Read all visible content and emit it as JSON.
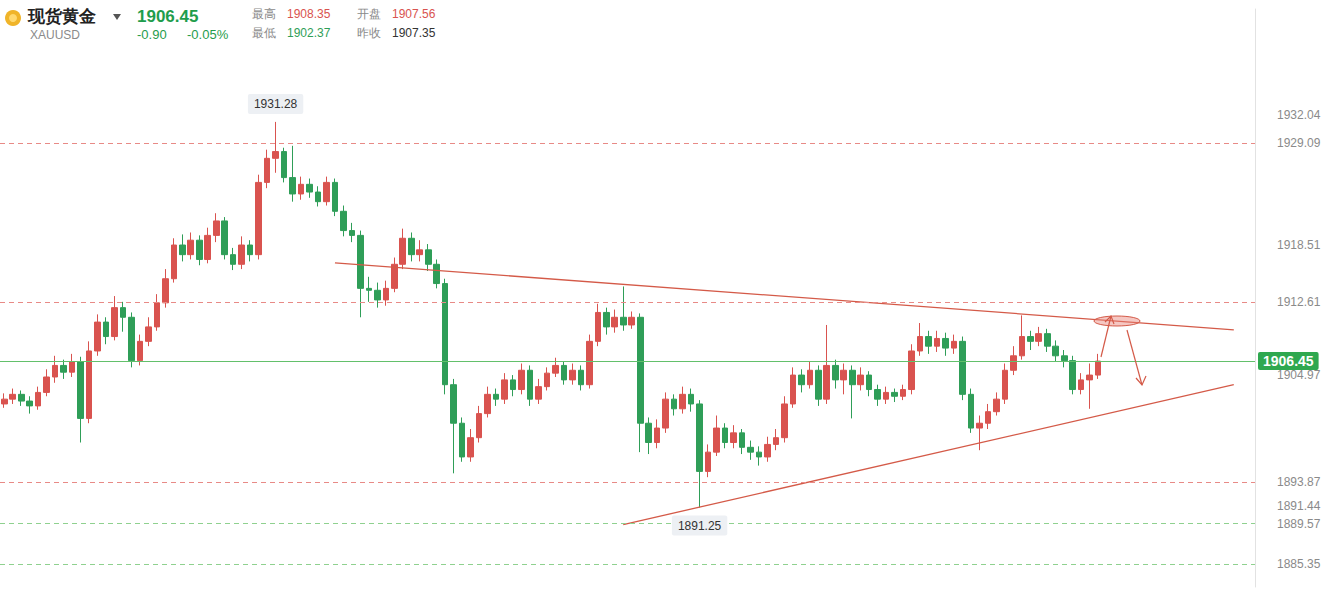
{
  "chart_data": {
    "type": "candlestick",
    "header": {
      "name": "现货黄金",
      "symbol": "XAUUSD",
      "price": "1906.45",
      "change": "-0.90",
      "change_pct": "-0.05%",
      "stats": [
        {
          "label": "最高",
          "value": "1908.35"
        },
        {
          "label": "开盘",
          "value": "1907.56"
        },
        {
          "label": "最低",
          "value": "1902.37"
        },
        {
          "label": "昨收",
          "value": "1907.35"
        }
      ]
    },
    "categories": [
      null,
      null,
      null,
      null,
      null,
      null,
      null,
      null,
      null,
      null,
      null,
      null,
      null,
      null,
      null,
      null,
      null,
      null,
      null,
      null,
      null,
      null,
      null,
      null,
      null,
      null,
      null,
      null,
      null,
      null,
      null,
      null,
      null,
      null,
      null,
      null,
      null,
      null,
      null,
      null,
      null,
      null,
      null,
      null,
      null,
      null,
      null,
      null,
      null,
      null,
      null,
      null,
      null,
      null,
      null,
      null,
      null,
      null,
      null,
      null,
      null,
      null,
      null,
      null,
      null,
      null,
      null,
      null,
      null,
      null,
      null,
      null,
      null,
      null,
      null,
      null,
      null,
      null,
      null,
      null,
      null,
      null,
      null,
      null,
      null,
      null,
      null,
      null,
      null,
      null,
      null,
      null,
      null,
      null,
      null,
      null,
      null,
      null,
      null,
      null,
      null,
      null,
      null,
      null,
      null,
      null,
      null,
      null,
      null,
      null,
      null,
      null,
      null,
      null,
      null,
      null,
      null,
      null,
      null,
      null,
      null,
      null,
      null,
      null,
      null,
      null,
      null,
      null,
      null,
      null,
      null,
      null,
      null,
      null,
      null,
      null,
      null,
      null,
      null,
      null,
      null,
      null,
      null,
      null,
      null,
      null,
      null,
      null
    ],
    "open_close_low_high": [
      [
        1902.0,
        1902.5,
        1901.6,
        1903.1
      ],
      [
        1902.5,
        1903.0,
        1902.0,
        1903.6
      ],
      [
        1903.0,
        1902.3,
        1901.8,
        1903.4
      ],
      [
        1902.3,
        1901.8,
        1901.0,
        1902.8
      ],
      [
        1901.8,
        1903.2,
        1901.4,
        1903.8
      ],
      [
        1903.2,
        1904.8,
        1902.8,
        1905.6
      ],
      [
        1904.8,
        1906.0,
        1904.2,
        1907.0
      ],
      [
        1906.0,
        1905.3,
        1904.6,
        1906.6
      ],
      [
        1905.3,
        1906.4,
        1904.8,
        1907.2
      ],
      [
        1906.4,
        1900.5,
        1898.0,
        1906.9
      ],
      [
        1900.5,
        1907.5,
        1900.0,
        1908.5
      ],
      [
        1907.5,
        1910.5,
        1907.0,
        1911.3
      ],
      [
        1910.5,
        1909.0,
        1908.2,
        1911.0
      ],
      [
        1909.0,
        1912.0,
        1908.6,
        1913.2
      ],
      [
        1912.0,
        1911.0,
        1909.5,
        1912.6
      ],
      [
        1911.0,
        1906.5,
        1905.8,
        1911.5
      ],
      [
        1906.5,
        1908.5,
        1906.0,
        1909.2
      ],
      [
        1908.5,
        1910.0,
        1908.0,
        1911.0
      ],
      [
        1910.0,
        1912.5,
        1909.6,
        1913.4
      ],
      [
        1912.5,
        1915.0,
        1912.0,
        1916.0
      ],
      [
        1915.0,
        1918.5,
        1914.6,
        1919.2
      ],
      [
        1918.5,
        1917.5,
        1916.8,
        1919.6
      ],
      [
        1917.5,
        1919.0,
        1917.0,
        1919.8
      ],
      [
        1919.0,
        1917.0,
        1916.4,
        1919.5
      ],
      [
        1917.0,
        1919.5,
        1916.6,
        1920.3
      ],
      [
        1919.5,
        1921.0,
        1918.8,
        1921.8
      ],
      [
        1921.0,
        1917.5,
        1917.0,
        1921.4
      ],
      [
        1917.5,
        1916.5,
        1915.9,
        1918.2
      ],
      [
        1916.5,
        1918.5,
        1916.0,
        1919.4
      ],
      [
        1918.5,
        1917.5,
        1916.8,
        1919.0
      ],
      [
        1917.5,
        1925.0,
        1917.0,
        1925.8
      ],
      [
        1925.0,
        1927.5,
        1924.4,
        1928.4
      ],
      [
        1927.5,
        1928.2,
        1926.0,
        1931.28
      ],
      [
        1928.2,
        1925.5,
        1925.0,
        1928.6
      ],
      [
        1925.5,
        1923.8,
        1923.0,
        1928.8
      ],
      [
        1923.8,
        1924.8,
        1923.2,
        1925.6
      ],
      [
        1924.8,
        1924.0,
        1923.4,
        1925.4
      ],
      [
        1924.0,
        1923.0,
        1922.5,
        1924.6
      ],
      [
        1923.0,
        1925.0,
        1922.6,
        1925.6
      ],
      [
        1925.0,
        1922.0,
        1921.5,
        1925.4
      ],
      [
        1922.0,
        1920.0,
        1919.4,
        1922.6
      ],
      [
        1920.0,
        1919.5,
        1918.8,
        1920.8
      ],
      [
        1919.5,
        1914.0,
        1911.0,
        1920.0
      ],
      [
        1914.0,
        1913.8,
        1912.6,
        1915.2
      ],
      [
        1913.8,
        1912.8,
        1912.0,
        1914.6
      ],
      [
        1912.8,
        1914.0,
        1912.2,
        1914.8
      ],
      [
        1914.0,
        1916.5,
        1913.6,
        1917.2
      ],
      [
        1916.5,
        1919.2,
        1916.0,
        1920.2
      ],
      [
        1919.2,
        1917.5,
        1916.8,
        1919.8
      ],
      [
        1917.5,
        1918.0,
        1916.8,
        1919.0
      ],
      [
        1918.0,
        1916.5,
        1915.8,
        1918.6
      ],
      [
        1916.5,
        1914.5,
        1914.0,
        1917.0
      ],
      [
        1914.5,
        1904.0,
        1903.0,
        1915.0
      ],
      [
        1904.0,
        1900.0,
        1894.8,
        1904.6
      ],
      [
        1900.0,
        1896.5,
        1896.0,
        1900.6
      ],
      [
        1896.5,
        1898.5,
        1896.0,
        1899.4
      ],
      [
        1898.5,
        1901.0,
        1898.0,
        1901.8
      ],
      [
        1901.0,
        1903.0,
        1900.6,
        1903.8
      ],
      [
        1903.0,
        1902.5,
        1901.8,
        1903.6
      ],
      [
        1902.5,
        1904.5,
        1902.0,
        1905.2
      ],
      [
        1904.5,
        1903.5,
        1902.8,
        1905.0
      ],
      [
        1903.5,
        1905.5,
        1903.0,
        1906.2
      ],
      [
        1905.5,
        1902.5,
        1901.8,
        1906.0
      ],
      [
        1902.5,
        1903.8,
        1902.0,
        1904.6
      ],
      [
        1903.8,
        1905.2,
        1903.4,
        1905.8
      ],
      [
        1905.2,
        1906.0,
        1904.8,
        1906.8
      ],
      [
        1906.0,
        1904.5,
        1904.0,
        1906.4
      ],
      [
        1904.5,
        1905.5,
        1904.0,
        1906.2
      ],
      [
        1905.5,
        1904.0,
        1903.4,
        1906.0
      ],
      [
        1904.0,
        1908.5,
        1903.6,
        1909.2
      ],
      [
        1908.5,
        1911.5,
        1908.0,
        1912.4
      ],
      [
        1911.5,
        1910.0,
        1909.2,
        1912.0
      ],
      [
        1910.0,
        1911.0,
        1909.4,
        1911.8
      ],
      [
        1911.0,
        1910.2,
        1909.6,
        1914.2
      ],
      [
        1910.2,
        1911.0,
        1909.8,
        1911.6
      ],
      [
        1911.0,
        1900.0,
        1897.0,
        1911.4
      ],
      [
        1900.0,
        1898.0,
        1896.8,
        1900.6
      ],
      [
        1898.0,
        1899.5,
        1897.4,
        1900.4
      ],
      [
        1899.5,
        1902.5,
        1899.0,
        1903.2
      ],
      [
        1902.5,
        1901.5,
        1900.8,
        1903.0
      ],
      [
        1901.5,
        1903.0,
        1901.0,
        1903.8
      ],
      [
        1903.0,
        1902.0,
        1901.2,
        1903.6
      ],
      [
        1902.0,
        1895.0,
        1891.25,
        1902.4
      ],
      [
        1895.0,
        1897.0,
        1894.4,
        1897.8
      ],
      [
        1897.0,
        1899.5,
        1896.6,
        1900.8
      ],
      [
        1899.5,
        1898.0,
        1897.4,
        1900.0
      ],
      [
        1898.0,
        1899.0,
        1897.4,
        1899.8
      ],
      [
        1899.0,
        1897.5,
        1896.8,
        1899.4
      ],
      [
        1897.5,
        1897.0,
        1896.2,
        1898.2
      ],
      [
        1897.0,
        1896.5,
        1895.6,
        1897.6
      ],
      [
        1896.5,
        1897.8,
        1896.0,
        1898.6
      ],
      [
        1897.8,
        1898.5,
        1897.2,
        1899.4
      ],
      [
        1898.5,
        1902.0,
        1898.0,
        1902.8
      ],
      [
        1902.0,
        1905.0,
        1901.6,
        1905.8
      ],
      [
        1905.0,
        1904.0,
        1903.2,
        1905.6
      ],
      [
        1904.0,
        1905.5,
        1903.6,
        1906.4
      ],
      [
        1905.5,
        1902.5,
        1901.8,
        1906.0
      ],
      [
        1902.5,
        1906.0,
        1902.0,
        1910.2
      ],
      [
        1906.0,
        1904.5,
        1903.6,
        1906.6
      ],
      [
        1904.5,
        1905.5,
        1903.0,
        1906.2
      ],
      [
        1905.5,
        1904.0,
        1900.5,
        1906.0
      ],
      [
        1904.0,
        1905.0,
        1903.4,
        1905.8
      ],
      [
        1905.0,
        1903.5,
        1902.8,
        1905.4
      ],
      [
        1903.5,
        1902.5,
        1901.8,
        1904.0
      ],
      [
        1902.5,
        1903.2,
        1902.0,
        1903.8
      ],
      [
        1903.2,
        1902.8,
        1902.2,
        1903.6
      ],
      [
        1902.8,
        1903.5,
        1902.4,
        1904.0
      ],
      [
        1903.5,
        1907.5,
        1903.0,
        1908.2
      ],
      [
        1907.5,
        1909.0,
        1907.0,
        1910.4
      ],
      [
        1909.0,
        1908.0,
        1907.2,
        1909.6
      ],
      [
        1908.0,
        1908.8,
        1907.4,
        1909.6
      ],
      [
        1908.8,
        1907.8,
        1907.0,
        1909.4
      ],
      [
        1907.8,
        1908.5,
        1907.2,
        1909.2
      ],
      [
        1908.5,
        1903.0,
        1902.4,
        1909.0
      ],
      [
        1903.0,
        1899.5,
        1899.0,
        1903.6
      ],
      [
        1899.5,
        1900.0,
        1897.2,
        1900.8
      ],
      [
        1900.0,
        1901.2,
        1899.4,
        1902.0
      ],
      [
        1901.2,
        1902.5,
        1900.8,
        1903.2
      ],
      [
        1902.5,
        1905.5,
        1902.0,
        1906.2
      ],
      [
        1905.5,
        1907.0,
        1905.0,
        1908.0
      ],
      [
        1907.0,
        1909.0,
        1906.6,
        1911.2
      ],
      [
        1909.0,
        1908.5,
        1907.6,
        1909.6
      ],
      [
        1908.5,
        1909.3,
        1908.0,
        1910.0
      ],
      [
        1909.3,
        1908.0,
        1907.4,
        1909.8
      ],
      [
        1908.0,
        1907.0,
        1906.4,
        1908.6
      ],
      [
        1907.0,
        1906.5,
        1905.8,
        1907.6
      ],
      [
        1906.5,
        1903.5,
        1903.0,
        1907.0
      ],
      [
        1903.5,
        1904.5,
        1903.0,
        1905.2
      ],
      [
        1904.5,
        1905.0,
        1901.5,
        1906.2
      ],
      [
        1905.0,
        1906.45,
        1904.6,
        1907.2
      ],
      null,
      null,
      null,
      null,
      null,
      null,
      null,
      null,
      null,
      null,
      null,
      null,
      null,
      null,
      null,
      null,
      null,
      null
    ],
    "ylim": [
      1883,
      1943
    ],
    "yticks": [
      1885.35,
      1889.57,
      1891.44,
      1893.87,
      1904.97,
      1912.61,
      1918.51,
      1929.09,
      1932.04
    ],
    "grid": false,
    "tick_labels": "y",
    "levels": {
      "resistance": [
        1929.09,
        1912.61,
        1893.87
      ],
      "support": [
        1889.57,
        1885.35
      ]
    },
    "last_price": 1906.45,
    "annotations": [
      {
        "label": "1931.28",
        "at": 32,
        "value": 1931.28,
        "position": "top"
      },
      {
        "label": "1891.25",
        "at": 82,
        "value": 1891.25,
        "position": "bottom"
      }
    ],
    "trend_lines": [
      {
        "from": [
          39,
          1916.65
        ],
        "to": [
          145,
          1909.7
        ]
      },
      {
        "from": [
          73,
          1889.48
        ],
        "to": [
          145,
          1904.0
        ]
      }
    ]
  }
}
